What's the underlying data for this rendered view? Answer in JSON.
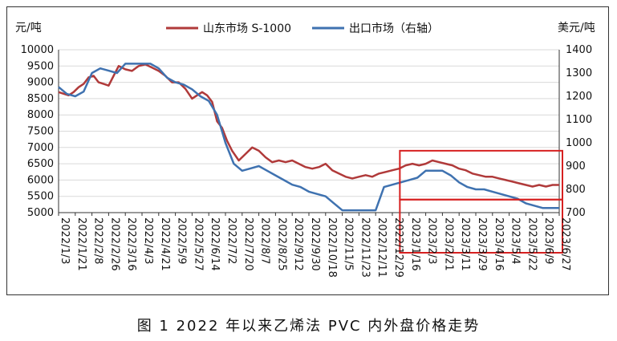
{
  "caption": "图 1  2022 年以来乙烯法 PVC 内外盘价格走势",
  "chart_data": {
    "type": "line",
    "left_axis_unit": "元/吨",
    "right_axis_unit": "美元/吨",
    "y_left": {
      "min": 5000,
      "max": 10000,
      "ticks": [
        5000,
        5500,
        6000,
        6500,
        7000,
        7500,
        8000,
        8500,
        9000,
        9500,
        10000
      ]
    },
    "y_right": {
      "min": 700,
      "max": 1400,
      "ticks": [
        700,
        800,
        900,
        1000,
        1100,
        1200,
        1300,
        1400
      ]
    },
    "x_tick_labels": [
      "2022/1/3",
      "2022/1/21",
      "2022/2/8",
      "2022/2/26",
      "2022/3/16",
      "2022/4/3",
      "2022/4/21",
      "2022/5/9",
      "2022/5/27",
      "2022/6/14",
      "2022/7/2",
      "2022/7/20",
      "2022/8/7",
      "2022/8/25",
      "2022/9/12",
      "2022/9/30",
      "2022/10/18",
      "2022/11/5",
      "2022/11/23",
      "2022/12/11",
      "2022/12/29",
      "2023/1/16",
      "2023/2/3",
      "2023/2/21",
      "2023/3/11",
      "2023/3/29",
      "2023/4/16",
      "2023/5/4",
      "2023/5/22",
      "2023/6/9",
      "2023/6/27"
    ],
    "series": [
      {
        "name": "山东市场 S-1000",
        "axis": "left",
        "color": "#b03a3a",
        "points": [
          [
            0,
            8700
          ],
          [
            0.3,
            8650
          ],
          [
            0.6,
            8600
          ],
          [
            0.9,
            8700
          ],
          [
            1.2,
            8850
          ],
          [
            1.5,
            8950
          ],
          [
            1.8,
            9150
          ],
          [
            2.1,
            9200
          ],
          [
            2.4,
            9000
          ],
          [
            2.7,
            8950
          ],
          [
            3.0,
            8900
          ],
          [
            3.3,
            9200
          ],
          [
            3.6,
            9500
          ],
          [
            4.0,
            9400
          ],
          [
            4.4,
            9350
          ],
          [
            4.8,
            9500
          ],
          [
            5.2,
            9550
          ],
          [
            5.6,
            9450
          ],
          [
            6.0,
            9350
          ],
          [
            6.4,
            9200
          ],
          [
            6.8,
            9000
          ],
          [
            7.2,
            9000
          ],
          [
            7.6,
            8800
          ],
          [
            8.0,
            8500
          ],
          [
            8.3,
            8600
          ],
          [
            8.6,
            8700
          ],
          [
            8.9,
            8600
          ],
          [
            9.2,
            8400
          ],
          [
            9.5,
            7800
          ],
          [
            9.8,
            7600
          ],
          [
            10.1,
            7200
          ],
          [
            10.4,
            6900
          ],
          [
            10.8,
            6600
          ],
          [
            11.2,
            6800
          ],
          [
            11.6,
            7000
          ],
          [
            12.0,
            6900
          ],
          [
            12.4,
            6700
          ],
          [
            12.8,
            6550
          ],
          [
            13.2,
            6600
          ],
          [
            13.6,
            6550
          ],
          [
            14.0,
            6600
          ],
          [
            14.4,
            6500
          ],
          [
            14.8,
            6400
          ],
          [
            15.2,
            6350
          ],
          [
            15.6,
            6400
          ],
          [
            16.0,
            6500
          ],
          [
            16.4,
            6300
          ],
          [
            16.8,
            6200
          ],
          [
            17.2,
            6100
          ],
          [
            17.6,
            6050
          ],
          [
            18.0,
            6100
          ],
          [
            18.4,
            6150
          ],
          [
            18.8,
            6100
          ],
          [
            19.2,
            6200
          ],
          [
            19.6,
            6250
          ],
          [
            20.0,
            6300
          ],
          [
            20.4,
            6350
          ],
          [
            20.8,
            6450
          ],
          [
            21.2,
            6500
          ],
          [
            21.6,
            6450
          ],
          [
            22.0,
            6500
          ],
          [
            22.4,
            6600
          ],
          [
            22.8,
            6550
          ],
          [
            23.2,
            6500
          ],
          [
            23.6,
            6450
          ],
          [
            24.0,
            6350
          ],
          [
            24.4,
            6300
          ],
          [
            24.8,
            6200
          ],
          [
            25.2,
            6150
          ],
          [
            25.6,
            6100
          ],
          [
            26.0,
            6100
          ],
          [
            26.4,
            6050
          ],
          [
            26.8,
            6000
          ],
          [
            27.2,
            5950
          ],
          [
            27.6,
            5900
          ],
          [
            28.0,
            5850
          ],
          [
            28.4,
            5800
          ],
          [
            28.8,
            5850
          ],
          [
            29.2,
            5800
          ],
          [
            29.6,
            5850
          ],
          [
            30.0,
            5850
          ]
        ]
      },
      {
        "name": "出口市场（右轴）",
        "axis": "right",
        "color": "#3f72b0",
        "points": [
          [
            0,
            1240
          ],
          [
            0.5,
            1210
          ],
          [
            1.0,
            1200
          ],
          [
            1.5,
            1220
          ],
          [
            2.0,
            1300
          ],
          [
            2.5,
            1320
          ],
          [
            3.0,
            1310
          ],
          [
            3.5,
            1300
          ],
          [
            4.0,
            1340
          ],
          [
            4.5,
            1340
          ],
          [
            5.0,
            1340
          ],
          [
            5.5,
            1340
          ],
          [
            6.0,
            1320
          ],
          [
            6.5,
            1280
          ],
          [
            7.0,
            1260
          ],
          [
            7.5,
            1250
          ],
          [
            8.0,
            1230
          ],
          [
            8.5,
            1200
          ],
          [
            9.0,
            1180
          ],
          [
            9.5,
            1120
          ],
          [
            10.0,
            1000
          ],
          [
            10.5,
            910
          ],
          [
            11.0,
            880
          ],
          [
            11.5,
            890
          ],
          [
            12.0,
            900
          ],
          [
            12.5,
            880
          ],
          [
            13.0,
            860
          ],
          [
            13.5,
            840
          ],
          [
            14.0,
            820
          ],
          [
            14.5,
            810
          ],
          [
            15.0,
            790
          ],
          [
            15.5,
            780
          ],
          [
            16.0,
            770
          ],
          [
            16.5,
            740
          ],
          [
            17.0,
            710
          ],
          [
            17.5,
            710
          ],
          [
            18.0,
            710
          ],
          [
            18.5,
            710
          ],
          [
            19.0,
            710
          ],
          [
            19.5,
            810
          ],
          [
            20.0,
            820
          ],
          [
            20.5,
            830
          ],
          [
            21.0,
            840
          ],
          [
            21.5,
            850
          ],
          [
            22.0,
            880
          ],
          [
            22.5,
            880
          ],
          [
            23.0,
            880
          ],
          [
            23.5,
            860
          ],
          [
            24.0,
            830
          ],
          [
            24.5,
            810
          ],
          [
            25.0,
            800
          ],
          [
            25.5,
            800
          ],
          [
            26.0,
            790
          ],
          [
            26.5,
            780
          ],
          [
            27.0,
            770
          ],
          [
            27.5,
            760
          ],
          [
            28.0,
            740
          ],
          [
            28.5,
            730
          ],
          [
            29.0,
            720
          ],
          [
            29.5,
            720
          ],
          [
            30.0,
            720
          ]
        ]
      }
    ],
    "highlight_boxes": "two red rectangles over the 2023 period",
    "grid": "horizontal",
    "legend_position": "top"
  }
}
